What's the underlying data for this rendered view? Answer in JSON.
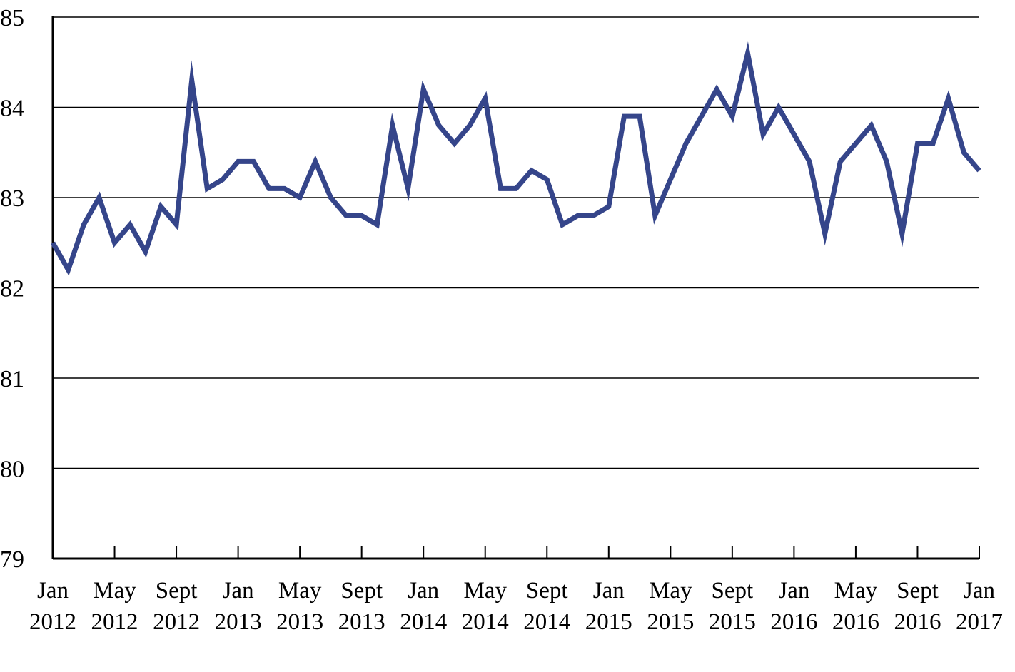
{
  "chart_data": {
    "type": "line",
    "title": "",
    "xlabel": "",
    "ylabel": "",
    "ylim": [
      79,
      85
    ],
    "yticks": [
      "79",
      "80",
      "81",
      "82",
      "83",
      "84",
      "85"
    ],
    "grid": true,
    "xlim": [
      "2012-01",
      "2017-01"
    ],
    "xtick_labels": [
      {
        "x": "2012-01",
        "line1": "Jan",
        "line2": "2012"
      },
      {
        "x": "2012-05",
        "line1": "May",
        "line2": "2012"
      },
      {
        "x": "2012-09",
        "line1": "Sept",
        "line2": "2012"
      },
      {
        "x": "2013-01",
        "line1": "Jan",
        "line2": "2013"
      },
      {
        "x": "2013-05",
        "line1": "May",
        "line2": "2013"
      },
      {
        "x": "2013-09",
        "line1": "Sept",
        "line2": "2013"
      },
      {
        "x": "2014-01",
        "line1": "Jan",
        "line2": "2014"
      },
      {
        "x": "2014-05",
        "line1": "May",
        "line2": "2014"
      },
      {
        "x": "2014-09",
        "line1": "Sept",
        "line2": "2014"
      },
      {
        "x": "2015-01",
        "line1": "Jan",
        "line2": "2015"
      },
      {
        "x": "2015-05",
        "line1": "May",
        "line2": "2015"
      },
      {
        "x": "2015-09",
        "line1": "Sept",
        "line2": "2015"
      },
      {
        "x": "2016-01",
        "line1": "Jan",
        "line2": "2016"
      },
      {
        "x": "2016-05",
        "line1": "May",
        "line2": "2016"
      },
      {
        "x": "2016-09",
        "line1": "Sept",
        "line2": "2016"
      },
      {
        "x": "2017-01",
        "line1": "Jan",
        "line2": "2017"
      }
    ],
    "series": [
      {
        "color": "#35458a",
        "points": [
          {
            "x": "2012-01",
            "y": 82.5
          },
          {
            "x": "2012-02",
            "y": 82.2
          },
          {
            "x": "2012-03",
            "y": 82.7
          },
          {
            "x": "2012-04",
            "y": 83.0
          },
          {
            "x": "2012-05",
            "y": 82.5
          },
          {
            "x": "2012-06",
            "y": 82.7
          },
          {
            "x": "2012-07",
            "y": 82.4
          },
          {
            "x": "2012-08",
            "y": 82.9
          },
          {
            "x": "2012-09",
            "y": 82.7
          },
          {
            "x": "2012-10",
            "y": 84.3
          },
          {
            "x": "2012-11",
            "y": 83.1
          },
          {
            "x": "2012-12",
            "y": 83.2
          },
          {
            "x": "2013-01",
            "y": 83.4
          },
          {
            "x": "2013-02",
            "y": 83.4
          },
          {
            "x": "2013-03",
            "y": 83.1
          },
          {
            "x": "2013-04",
            "y": 83.1
          },
          {
            "x": "2013-05",
            "y": 83.0
          },
          {
            "x": "2013-06",
            "y": 83.4
          },
          {
            "x": "2013-07",
            "y": 83.0
          },
          {
            "x": "2013-08",
            "y": 82.8
          },
          {
            "x": "2013-09",
            "y": 82.8
          },
          {
            "x": "2013-10",
            "y": 82.7
          },
          {
            "x": "2013-11",
            "y": 83.8
          },
          {
            "x": "2013-12",
            "y": 83.1
          },
          {
            "x": "2014-01",
            "y": 84.2
          },
          {
            "x": "2014-02",
            "y": 83.8
          },
          {
            "x": "2014-03",
            "y": 83.6
          },
          {
            "x": "2014-04",
            "y": 83.8
          },
          {
            "x": "2014-05",
            "y": 84.1
          },
          {
            "x": "2014-06",
            "y": 83.1
          },
          {
            "x": "2014-07",
            "y": 83.1
          },
          {
            "x": "2014-08",
            "y": 83.3
          },
          {
            "x": "2014-09",
            "y": 83.2
          },
          {
            "x": "2014-10",
            "y": 82.7
          },
          {
            "x": "2014-11",
            "y": 82.8
          },
          {
            "x": "2014-12",
            "y": 82.8
          },
          {
            "x": "2015-01",
            "y": 82.9
          },
          {
            "x": "2015-02",
            "y": 83.9
          },
          {
            "x": "2015-03",
            "y": 83.9
          },
          {
            "x": "2015-04",
            "y": 82.8
          },
          {
            "x": "2015-05",
            "y": 83.2
          },
          {
            "x": "2015-06",
            "y": 83.6
          },
          {
            "x": "2015-07",
            "y": 83.9
          },
          {
            "x": "2015-08",
            "y": 84.2
          },
          {
            "x": "2015-09",
            "y": 83.9
          },
          {
            "x": "2015-10",
            "y": 84.6
          },
          {
            "x": "2015-11",
            "y": 83.7
          },
          {
            "x": "2015-12",
            "y": 84.0
          },
          {
            "x": "2016-01",
            "y": 83.7
          },
          {
            "x": "2016-02",
            "y": 83.4
          },
          {
            "x": "2016-03",
            "y": 82.6
          },
          {
            "x": "2016-04",
            "y": 83.4
          },
          {
            "x": "2016-05",
            "y": 83.6
          },
          {
            "x": "2016-06",
            "y": 83.8
          },
          {
            "x": "2016-07",
            "y": 83.4
          },
          {
            "x": "2016-08",
            "y": 82.6
          },
          {
            "x": "2016-09",
            "y": 83.6
          },
          {
            "x": "2016-10",
            "y": 83.6
          },
          {
            "x": "2016-11",
            "y": 84.1
          },
          {
            "x": "2016-12",
            "y": 83.5
          },
          {
            "x": "2017-01",
            "y": 83.3
          }
        ]
      }
    ]
  }
}
